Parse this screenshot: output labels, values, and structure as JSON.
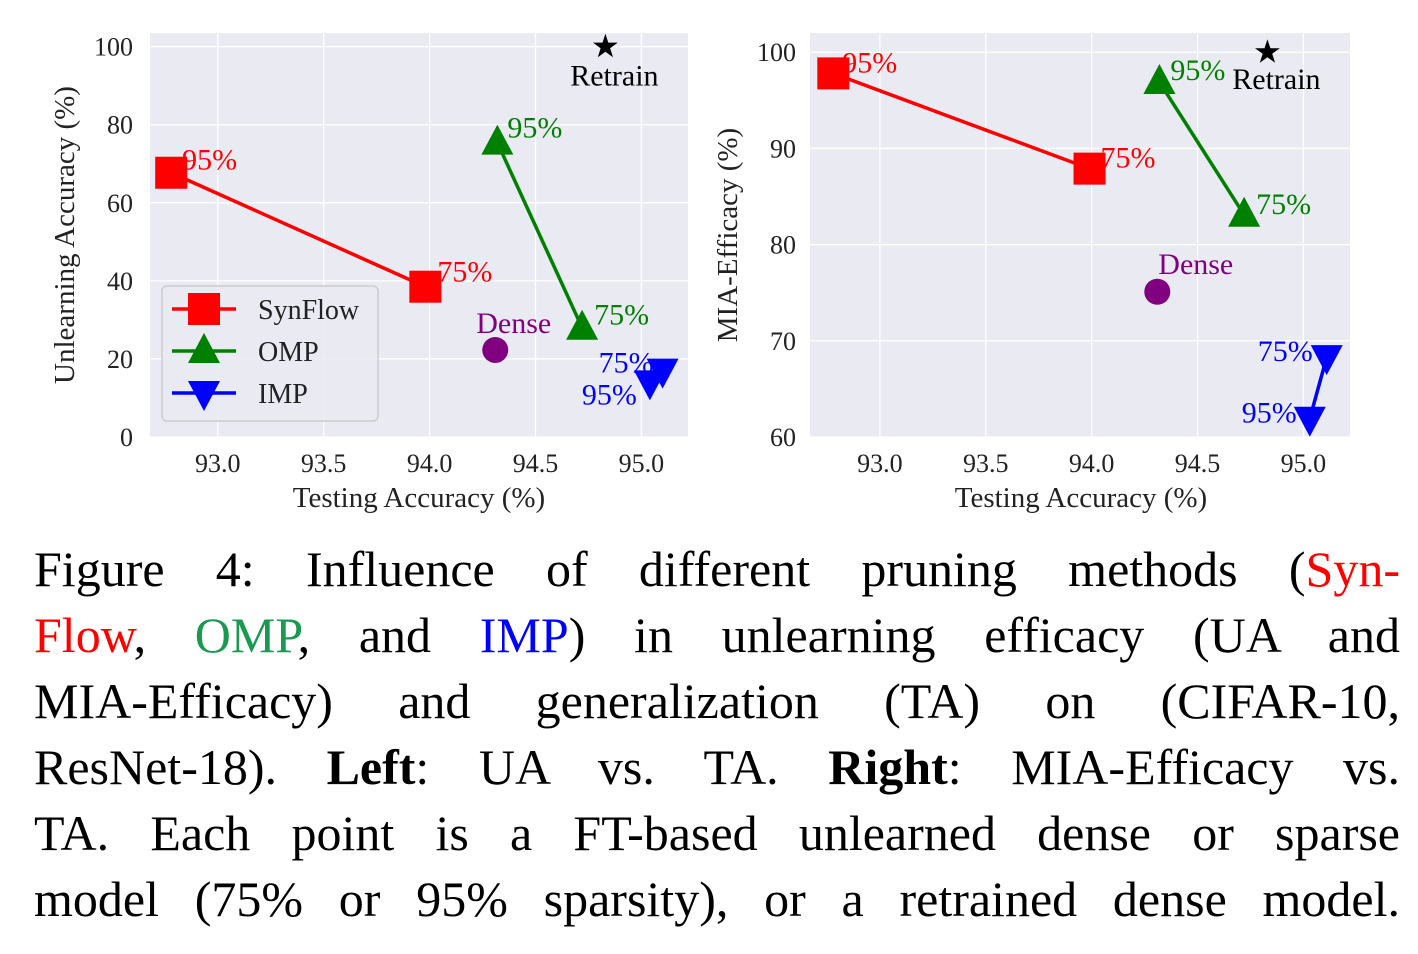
{
  "colors": {
    "SynFlow": "#ff0000",
    "OMP": "#008000",
    "IMP": "#0000ff",
    "Dense": "#800080",
    "Retrain": "#000000",
    "plot_bg": "#eaeaf2",
    "grid": "#ffffff"
  },
  "chart_data": [
    {
      "type": "scatter",
      "panel": "Left",
      "xlabel": "Testing Accuracy (%)",
      "ylabel": "Unlearning Accuracy (%)",
      "xlim": [
        92.68,
        95.22
      ],
      "ylim": [
        0,
        103.5
      ],
      "xticks": [
        "93.0",
        "93.5",
        "94.0",
        "94.5",
        "95.0"
      ],
      "yticks": [
        "0",
        "20",
        "40",
        "60",
        "80",
        "100"
      ],
      "grid": true,
      "legend": {
        "placement": "lower-left",
        "entries": [
          "SynFlow",
          "OMP",
          "IMP"
        ]
      },
      "series": [
        {
          "name": "SynFlow",
          "marker": "square",
          "points": [
            {
              "x": 92.78,
              "y": 67.7,
              "label": "95%"
            },
            {
              "x": 93.98,
              "y": 38.5,
              "label": "75%"
            }
          ]
        },
        {
          "name": "OMP",
          "marker": "triangle-up",
          "points": [
            {
              "x": 94.32,
              "y": 75.4,
              "label": "95%"
            },
            {
              "x": 94.72,
              "y": 28.0,
              "label": "75%"
            }
          ]
        },
        {
          "name": "IMP",
          "marker": "triangle-down",
          "points": [
            {
              "x": 95.04,
              "y": 14.0,
              "label": "95%"
            },
            {
              "x": 95.1,
              "y": 17.0,
              "label": "75%"
            }
          ]
        }
      ],
      "singles": [
        {
          "name": "Dense",
          "marker": "circle",
          "x": 94.31,
          "y": 22.3,
          "label": "Dense"
        },
        {
          "name": "Retrain",
          "marker": "star",
          "x": 94.83,
          "y": 100,
          "label": "Retrain"
        }
      ]
    },
    {
      "type": "scatter",
      "panel": "Right",
      "xlabel": "Testing Accuracy (%)",
      "ylabel": "MIA-Efficacy (%)",
      "xlim": [
        92.67,
        95.22
      ],
      "ylim": [
        60,
        102
      ],
      "xticks": [
        "93.0",
        "93.5",
        "94.0",
        "94.5",
        "95.0"
      ],
      "yticks": [
        "60",
        "70",
        "80",
        "90",
        "100"
      ],
      "grid": true,
      "series": [
        {
          "name": "SynFlow",
          "marker": "square",
          "points": [
            {
              "x": 92.78,
              "y": 97.8,
              "label": "95%"
            },
            {
              "x": 93.99,
              "y": 87.9,
              "label": "75%"
            }
          ]
        },
        {
          "name": "OMP",
          "marker": "triangle-up",
          "points": [
            {
              "x": 94.32,
              "y": 96.9,
              "label": "95%"
            },
            {
              "x": 94.72,
              "y": 83.1,
              "label": "75%"
            }
          ]
        },
        {
          "name": "IMP",
          "marker": "triangle-down",
          "points": [
            {
              "x": 95.03,
              "y": 61.9,
              "label": "95%"
            },
            {
              "x": 95.11,
              "y": 68.3,
              "label": "75%"
            }
          ]
        }
      ],
      "singles": [
        {
          "name": "Dense",
          "marker": "circle",
          "x": 94.31,
          "y": 75.1,
          "label": "Dense"
        },
        {
          "name": "Retrain",
          "marker": "star",
          "x": 94.83,
          "y": 100,
          "label": "Retrain"
        }
      ]
    }
  ],
  "caption": {
    "lines": [
      [
        {
          "text": "Figure 4:  Influence of different pruning methods ("
        },
        {
          "text": "Syn-",
          "color": "#ff0000"
        }
      ],
      [
        {
          "text": "Flow",
          "color": "#ff0000"
        },
        {
          "text": ", "
        },
        {
          "text": "OMP",
          "color": "#1a9950"
        },
        {
          "text": ", and "
        },
        {
          "text": "IMP",
          "color": "#0000ff"
        },
        {
          "text": ") in unlearning efficacy (UA and"
        }
      ],
      [
        {
          "text": "MIA-Efficacy) and generalization (TA) on (CIFAR-10,"
        }
      ],
      [
        {
          "text": "ResNet-18). "
        },
        {
          "text": "Left",
          "bold": true
        },
        {
          "text": ": UA vs. TA. "
        },
        {
          "text": "Right",
          "bold": true
        },
        {
          "text": ": MIA-Efficacy vs."
        }
      ],
      [
        {
          "text": "TA. Each point is a FT-based unlearned dense or sparse"
        }
      ],
      [
        {
          "text": "model (75% or 95% sparsity), or a retrained dense model."
        }
      ]
    ]
  }
}
